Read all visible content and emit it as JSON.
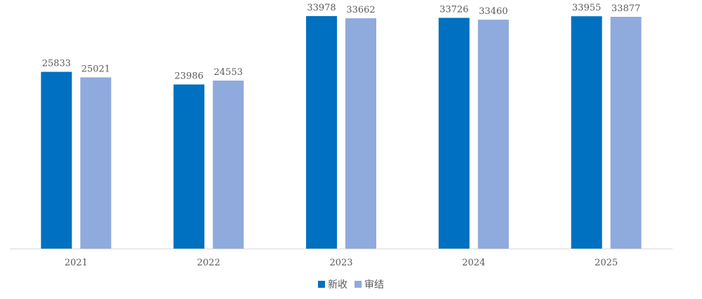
{
  "chart_data": {
    "type": "bar",
    "categories": [
      "2021",
      "2022",
      "2023",
      "2024",
      "2025"
    ],
    "series": [
      {
        "name": "新收",
        "values": [
          25833,
          23986,
          33978,
          33726,
          33955
        ],
        "color": "#0070C0"
      },
      {
        "name": "审结",
        "values": [
          25021,
          24553,
          33662,
          33460,
          33877
        ],
        "color": "#8FAADC"
      }
    ],
    "title": "",
    "xlabel": "",
    "ylabel": "",
    "ylim": [
      0,
      34000
    ],
    "data_labels": true,
    "grid": false,
    "legend_position": "bottom"
  },
  "colors": {
    "axis": "#D9D9D9",
    "text": "#595959"
  }
}
